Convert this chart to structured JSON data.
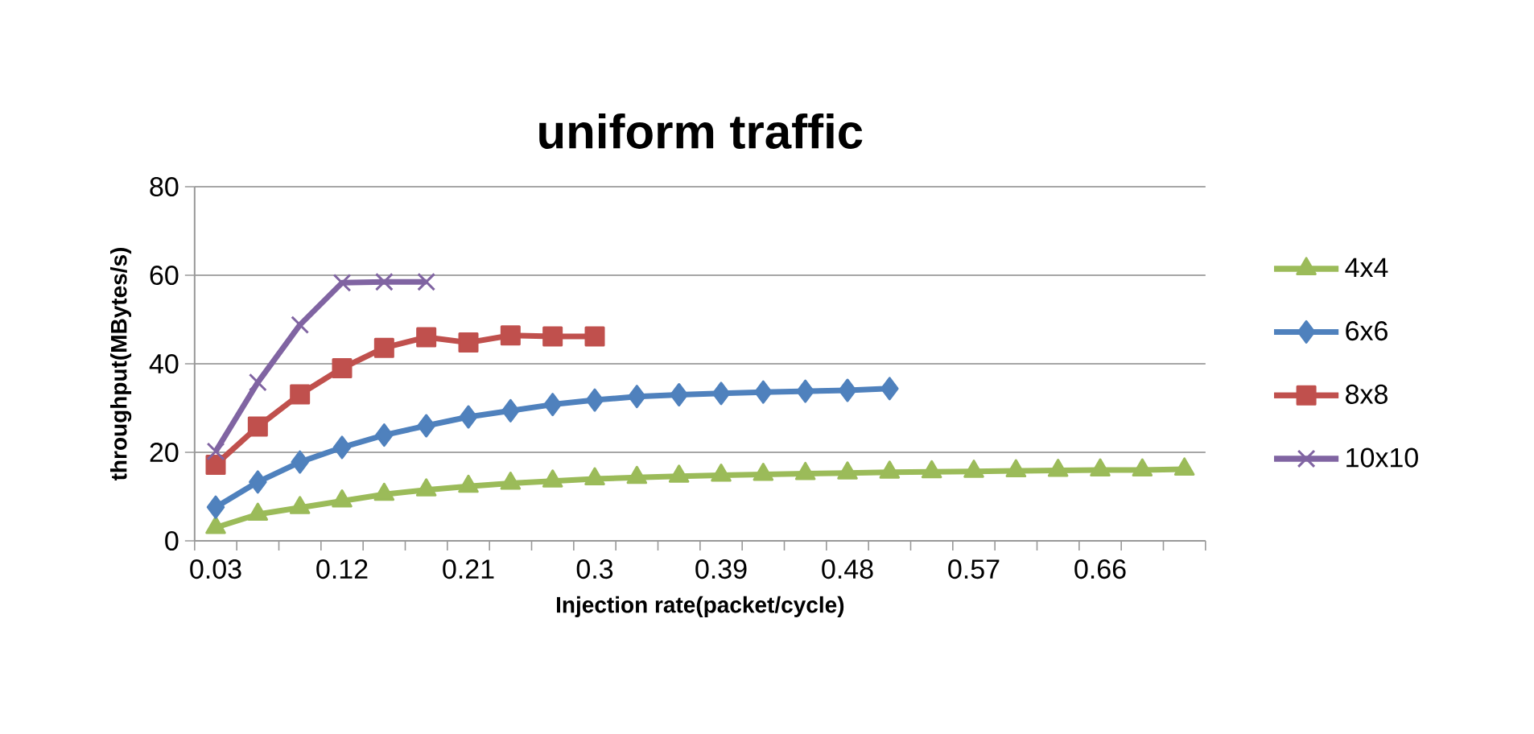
{
  "chart_data": {
    "type": "line",
    "title": "uniform traffic",
    "xlabel": "Injection rate(packet/cycle)",
    "ylabel": "throughput(MBytes/s)",
    "categories": [
      "0.03",
      null,
      null,
      "0.12",
      null,
      null,
      "0.21",
      null,
      null,
      "0.3",
      null,
      null,
      "0.39",
      null,
      null,
      "0.48",
      null,
      null,
      "0.57",
      null,
      null,
      "0.66",
      null,
      null
    ],
    "series": [
      {
        "name": "4x4",
        "color": "#9bbb59",
        "marker": "triangle",
        "values": [
          3,
          6,
          7.5,
          9,
          10.5,
          11.5,
          12.3,
          13,
          13.5,
          14,
          14.3,
          14.6,
          14.8,
          15,
          15.2,
          15.3,
          15.5,
          15.6,
          15.7,
          15.8,
          15.9,
          16,
          16,
          16.2
        ]
      },
      {
        "name": "6x6",
        "color": "#4f81bd",
        "marker": "diamond",
        "values": [
          7.6,
          13.3,
          17.8,
          21.1,
          23.9,
          26,
          28,
          29.4,
          30.8,
          31.8,
          32.6,
          33,
          33.3,
          33.6,
          33.8,
          34,
          34.4,
          null,
          null,
          null,
          null,
          null,
          null,
          null
        ]
      },
      {
        "name": "8x8",
        "color": "#c0504d",
        "marker": "square",
        "values": [
          17.2,
          25.8,
          33.1,
          39,
          43.6,
          46,
          44.8,
          46.4,
          46.2,
          46.2,
          null,
          null,
          null,
          null,
          null,
          null,
          null,
          null,
          null,
          null,
          null,
          null,
          null,
          null
        ]
      },
      {
        "name": "10x10",
        "color": "#8064a2",
        "marker": "cross",
        "values": [
          20.2,
          35.8,
          48.8,
          58.3,
          58.5,
          58.5,
          null,
          null,
          null,
          null,
          null,
          null,
          null,
          null,
          null,
          null,
          null,
          null,
          null,
          null,
          null,
          null,
          null,
          null
        ]
      }
    ],
    "ylim": [
      0,
      80
    ],
    "yticks": [
      0,
      20,
      40,
      60,
      80
    ],
    "grid": "y",
    "legend": "right"
  }
}
